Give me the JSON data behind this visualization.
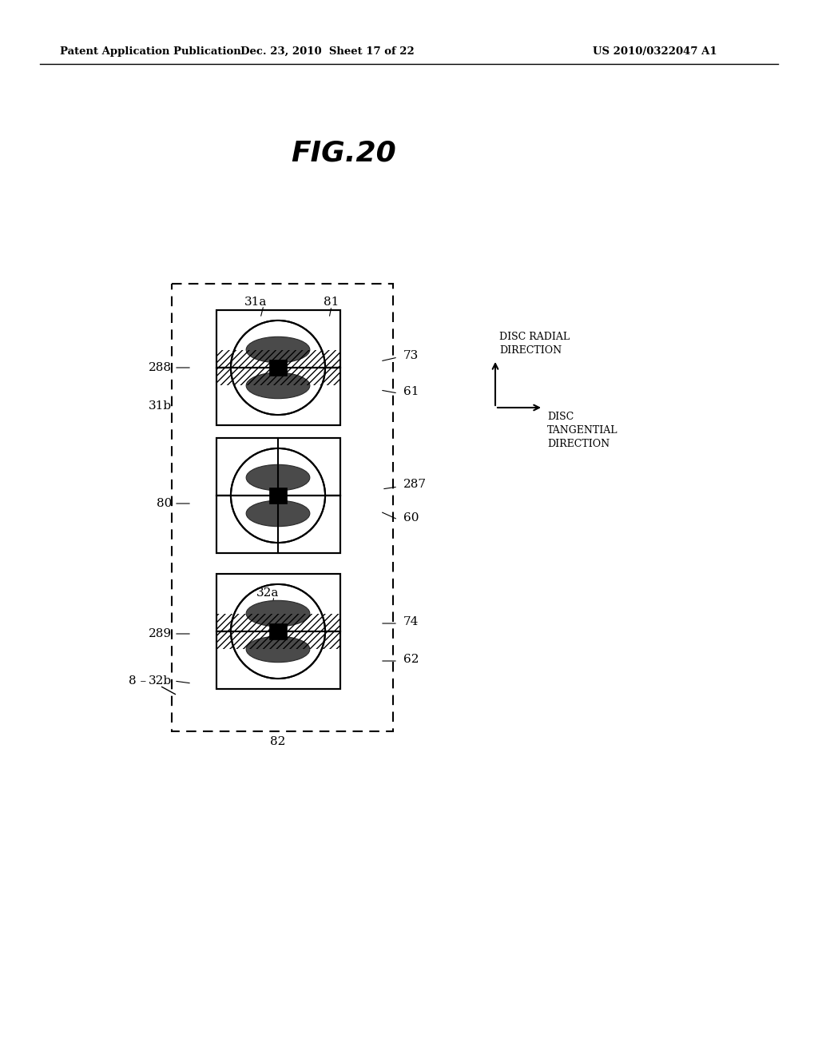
{
  "title": "FIG.20",
  "header_left": "Patent Application Publication",
  "header_center": "Dec. 23, 2010  Sheet 17 of 22",
  "header_right": "US 2010/0322047 A1",
  "background_color": "#ffffff",
  "text_color": "#000000"
}
